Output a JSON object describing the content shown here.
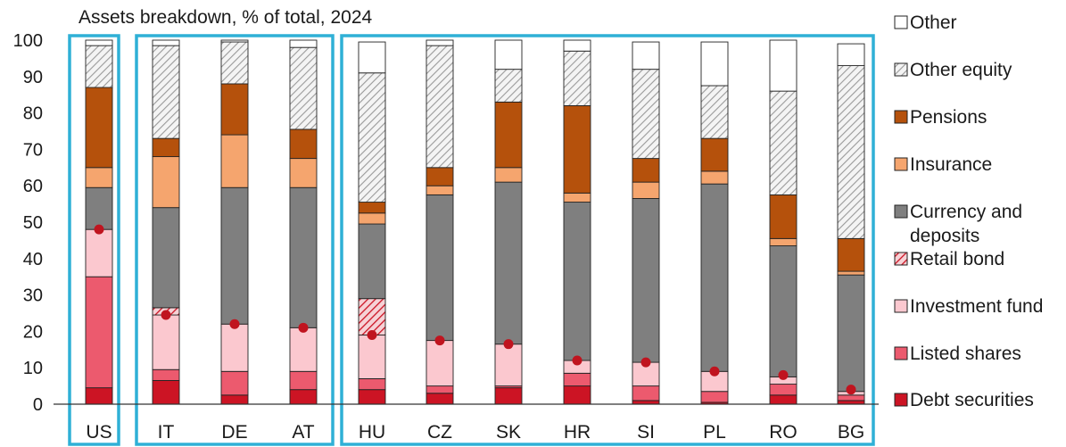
{
  "chart_data": {
    "type": "bar",
    "stacked": true,
    "title": "Assets breakdown, % of total, 2024",
    "ylim": [
      0,
      100
    ],
    "yticks": [
      0,
      10,
      20,
      30,
      40,
      50,
      60,
      70,
      80,
      90,
      100
    ],
    "categories": [
      "US",
      "IT",
      "DE",
      "AT",
      "HU",
      "CZ",
      "SK",
      "HR",
      "SI",
      "PL",
      "RO",
      "BG"
    ],
    "groups": [
      [
        "US"
      ],
      [
        "IT",
        "DE",
        "AT"
      ],
      [
        "HU",
        "CZ",
        "SK",
        "HR",
        "SI",
        "PL",
        "RO",
        "BG"
      ]
    ],
    "series": [
      {
        "name": "Debt securities",
        "color": "#cc1424",
        "pattern": "solid",
        "values": [
          4.5,
          6.5,
          2.5,
          4,
          4,
          3,
          4.5,
          5,
          1,
          0.5,
          2.5,
          1
        ]
      },
      {
        "name": "Listed shares",
        "color": "#ec5a6e",
        "pattern": "solid",
        "values": [
          30.5,
          3,
          6.5,
          5,
          3,
          2,
          0.5,
          3.5,
          4,
          3,
          3,
          1.5
        ]
      },
      {
        "name": "Investment fund",
        "color": "#fbc8cf",
        "pattern": "solid",
        "values": [
          13,
          15,
          13,
          12,
          12,
          12.5,
          11.5,
          3.5,
          6.5,
          5.5,
          2,
          1
        ]
      },
      {
        "name": "Retail bond",
        "color": "#cc1424",
        "pattern": "hatch",
        "values": [
          0,
          2,
          0,
          0,
          10,
          0,
          0,
          0,
          0,
          0,
          0,
          0
        ]
      },
      {
        "name": "Currency and deposits",
        "color": "#7f7f7f",
        "pattern": "solid",
        "values": [
          11.5,
          27.5,
          37.5,
          38.5,
          20.5,
          40,
          44.5,
          43.5,
          45,
          51.5,
          36,
          32
        ]
      },
      {
        "name": "Insurance",
        "color": "#f5a56e",
        "pattern": "solid",
        "values": [
          5.5,
          14,
          14.5,
          8,
          3,
          2.5,
          4,
          2.5,
          4.5,
          3.5,
          2,
          1
        ]
      },
      {
        "name": "Pensions",
        "color": "#b5510c",
        "pattern": "solid",
        "values": [
          22,
          5,
          14,
          8,
          3,
          5,
          18,
          24,
          6.5,
          9,
          12,
          9
        ]
      },
      {
        "name": "Other equity",
        "color": "#d9d9d9",
        "pattern": "hatch",
        "values": [
          11.5,
          25.5,
          11.5,
          22.5,
          35.5,
          33.5,
          9,
          15,
          24.5,
          14.5,
          28.5,
          47.5
        ]
      },
      {
        "name": "Other",
        "color": "#ffffff",
        "pattern": "solid",
        "values": [
          1.5,
          1.5,
          0.5,
          2,
          8.5,
          1.5,
          8,
          3,
          7.5,
          12,
          14,
          6
        ]
      }
    ],
    "markers": {
      "color": "#c0141f",
      "values": [
        48,
        24.5,
        22,
        21,
        19,
        17.5,
        16.5,
        12,
        11.5,
        9,
        8,
        4
      ]
    },
    "group_box_color": "#2fb0d6",
    "legend_position": "right",
    "grid": false
  }
}
